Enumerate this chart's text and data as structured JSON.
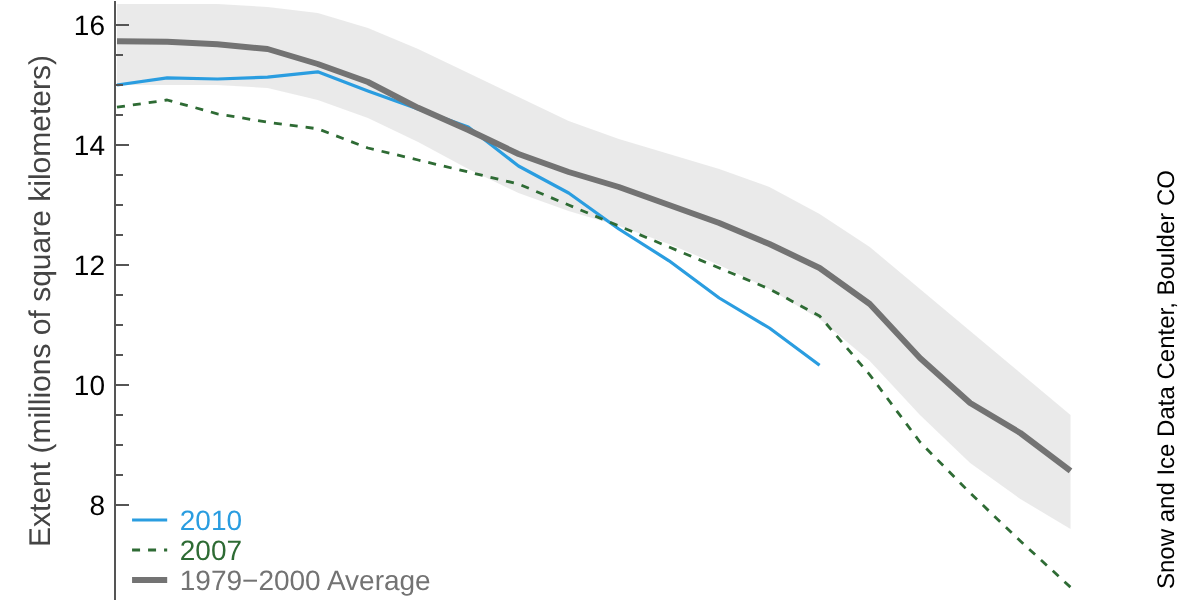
{
  "chart_data": {
    "type": "line",
    "ylabel": "Extent (millions of square kilometers)",
    "categories": [
      null,
      null,
      null,
      null,
      null,
      null,
      null,
      null,
      null,
      null,
      null,
      null,
      null,
      null,
      null,
      null,
      null,
      null,
      null,
      null
    ],
    "series": [
      {
        "name": "2010",
        "color": "#2a9de0",
        "line_style": "solid",
        "values": [
          15.0,
          15.12,
          15.1,
          15.13,
          15.22,
          14.9,
          14.6,
          14.3,
          13.65,
          13.2,
          12.6,
          12.07,
          11.45,
          10.95,
          10.33,
          null,
          null,
          null,
          null,
          null
        ]
      },
      {
        "name": "2007",
        "color": "#2e6b34",
        "line_style": "dashed",
        "values": [
          14.63,
          14.75,
          14.52,
          14.38,
          14.27,
          13.95,
          13.75,
          13.55,
          13.35,
          13.0,
          12.65,
          12.3,
          11.95,
          11.6,
          11.15,
          10.17,
          9.05,
          8.2,
          7.4,
          6.63
        ]
      },
      {
        "name": "1979−2000 Average",
        "color": "#737373",
        "line_style": "solid",
        "values": [
          15.73,
          15.72,
          15.68,
          15.6,
          15.35,
          15.05,
          14.62,
          14.25,
          13.85,
          13.55,
          13.3,
          13.0,
          12.7,
          12.35,
          11.95,
          11.35,
          10.45,
          9.7,
          9.2,
          8.57
        ],
        "lower": [
          15.0,
          15.0,
          15.0,
          14.95,
          14.75,
          14.45,
          14.05,
          13.6,
          13.2,
          12.9,
          12.65,
          12.35,
          12.0,
          11.6,
          11.1,
          10.4,
          9.5,
          8.7,
          8.1,
          7.6
        ],
        "upper": [
          16.35,
          16.35,
          16.35,
          16.3,
          16.2,
          15.95,
          15.6,
          15.2,
          14.8,
          14.4,
          14.1,
          13.85,
          13.6,
          13.3,
          12.85,
          12.3,
          11.6,
          10.9,
          10.2,
          9.5
        ]
      }
    ],
    "ylim": [
      6.4,
      16.4
    ],
    "yticks": [
      8,
      {
        "value": 8.5,
        "label": null
      },
      {
        "value": 9,
        "label": null
      },
      {
        "value": 9.5,
        "label": null
      },
      10,
      {
        "value": 10.5,
        "label": null
      },
      {
        "value": 11,
        "label": null
      },
      {
        "value": 11.5,
        "label": null
      },
      12,
      {
        "value": 12.5,
        "label": null
      },
      {
        "value": 13,
        "label": null
      },
      {
        "value": 13.5,
        "label": null
      },
      14,
      {
        "value": 14.5,
        "label": null
      },
      {
        "value": 15,
        "label": null
      },
      {
        "value": 15.5,
        "label": null
      },
      16
    ],
    "tick_labels": "y",
    "grid": false,
    "legend": "bottom left",
    "annotations": [
      "Snow and Ice Data Center, Boulder CO"
    ]
  }
}
